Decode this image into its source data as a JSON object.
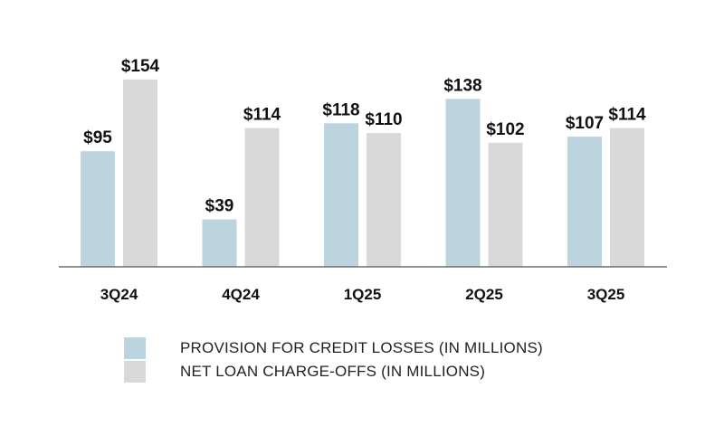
{
  "chart_data": {
    "type": "bar",
    "categories": [
      "3Q24",
      "4Q24",
      "1Q25",
      "2Q25",
      "3Q25"
    ],
    "series": [
      {
        "name": "PROVISION FOR CREDIT LOSSES (IN MILLIONS)",
        "values": [
          95,
          39,
          118,
          138,
          107
        ],
        "labels": [
          "$95",
          "$39",
          "$118",
          "$138",
          "$107"
        ],
        "color": "#bcd4de"
      },
      {
        "name": "NET LOAN CHARGE-OFFS (IN MILLIONS)",
        "values": [
          154,
          114,
          110,
          102,
          114
        ],
        "labels": [
          "$154",
          "$114",
          "$110",
          "$102",
          "$114"
        ],
        "color": "#d9d9d9"
      }
    ],
    "ylim": [
      0,
      160
    ],
    "title": "",
    "xlabel": "",
    "ylabel": "",
    "grid": false,
    "legend_position": "bottom-left"
  },
  "colors": {
    "axis": "#6e6e6e",
    "text": "#111111"
  }
}
